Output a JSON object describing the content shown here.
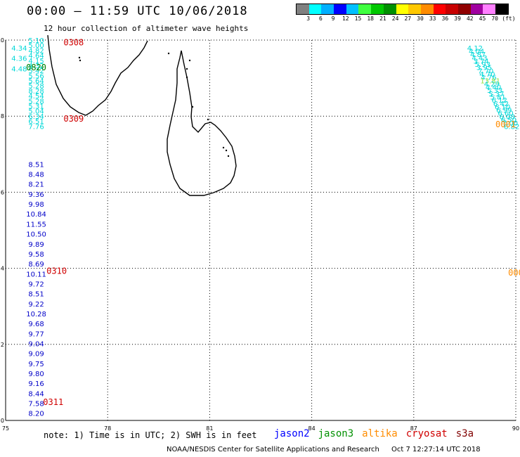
{
  "title": "00:00 – 11:59 UTC 10/06/2018",
  "subtitle": "12 hour collection of altimeter wave heights",
  "legend": {
    "colors": [
      "#808080",
      "#00ffff",
      "#00b0ff",
      "#0000ff",
      "#00c0ff",
      "#40ff40",
      "#00c800",
      "#009000",
      "#ffff00",
      "#ffc800",
      "#ff8c00",
      "#ff0000",
      "#c80000",
      "#900000",
      "#a000a0",
      "#ff80ff",
      "#000000"
    ],
    "labels": [
      "3",
      "6",
      "9",
      "12",
      "15",
      "18",
      "21",
      "24",
      "27",
      "30",
      "33",
      "36",
      "39",
      "42",
      "45",
      "70"
    ],
    "unit": "(ft)"
  },
  "axes": {
    "lon_ticks": [
      "75",
      "78",
      "81",
      "84",
      "87",
      "90"
    ],
    "lat_ticks": [
      "0",
      "2",
      "4",
      "6",
      "8",
      "10"
    ],
    "lon_range": [
      75,
      90
    ],
    "lat_range": [
      0,
      10
    ],
    "grid": true
  },
  "tracks": [
    {
      "satellite": "cryosat",
      "color": "#00d8d8",
      "lon": 75.9,
      "lat_start": 10.0,
      "lat_end": 7.74,
      "values": [
        "5.10",
        "5.00",
        "4.82",
        "4.64",
        "4.15",
        "4.32",
        "5.42",
        "5.56",
        "5.64",
        "5.28",
        "8.28",
        "4.54",
        "5.28",
        "5.31",
        "5.04",
        "6.34",
        "6.51",
        "7.76"
      ]
    },
    {
      "satellite": "cryosat",
      "color": "#0000c8",
      "lon": 75.9,
      "lat_start": 6.74,
      "lat_end": 0.19,
      "values": [
        "8.51",
        "8.48",
        "8.21",
        "9.36",
        "9.98",
        "10.84",
        "11.55",
        "10.50",
        "9.89",
        "9.58",
        "8.69",
        "10.11",
        "9.72",
        "8.51",
        "9.22",
        "10.28",
        "9.68",
        "9.77",
        "9.04",
        "9.09",
        "9.75",
        "9.80",
        "9.16",
        "8.44",
        "7.58",
        "8.20"
      ]
    },
    {
      "satellite": "jason3",
      "color": "#00d8d8",
      "lon": 75.4,
      "lat_start": 9.8,
      "lat_end": 9.25,
      "values": [
        "4.34",
        "4.36",
        "4.48"
      ]
    },
    {
      "satellite": "cryosat",
      "color": "#00d8d8",
      "lon": 88.8,
      "lat_start": 9.8,
      "lat_end": 7.74,
      "values": [
        "4.12",
        "4.04",
        "4.87",
        "4.43",
        "3.74",
        "5.93",
        "3.95",
        "7.70",
        "4.70",
        "4.76",
        "13.81",
        "4.29",
        "4.40",
        "5.33",
        "5.37",
        "5.81",
        "6.12",
        "6.42",
        "6.10",
        "6.99",
        "6.60",
        "6.08",
        "6.50",
        "7.00",
        "6.82"
      ]
    }
  ],
  "track_labels": [
    {
      "text": "0308",
      "color": "#d00000",
      "lon": 77.0,
      "lat": 9.95
    },
    {
      "text": "0820",
      "color": "#008000",
      "lon": 75.9,
      "lat": 9.3
    },
    {
      "text": "0309",
      "color": "#d00000",
      "lon": 77.0,
      "lat": 7.95
    },
    {
      "text": "0310",
      "color": "#d00000",
      "lon": 76.5,
      "lat": 3.95
    },
    {
      "text": "0311",
      "color": "#d00000",
      "lon": 76.4,
      "lat": 0.5
    },
    {
      "text": "0001",
      "color": "#ff8c00",
      "lon": 89.7,
      "lat": 7.8
    },
    {
      "text": "000",
      "color": "#ff8c00",
      "lon": 90.0,
      "lat": 3.9
    }
  ],
  "note": "note: 1) Time is in UTC; 2) SWH is in feet",
  "satellites": [
    {
      "name": "jason2",
      "color": "#0000ff"
    },
    {
      "name": "jason3",
      "color": "#009000"
    },
    {
      "name": "altika",
      "color": "#ff8c00"
    },
    {
      "name": "cryosat",
      "color": "#d00000"
    },
    {
      "name": "s3a",
      "color": "#800000"
    }
  ],
  "credit": {
    "org": "NOAA/NESDIS Center for Satellite Applications and Research",
    "timestamp": "Oct  7 12:27:14 UTC 2018"
  }
}
